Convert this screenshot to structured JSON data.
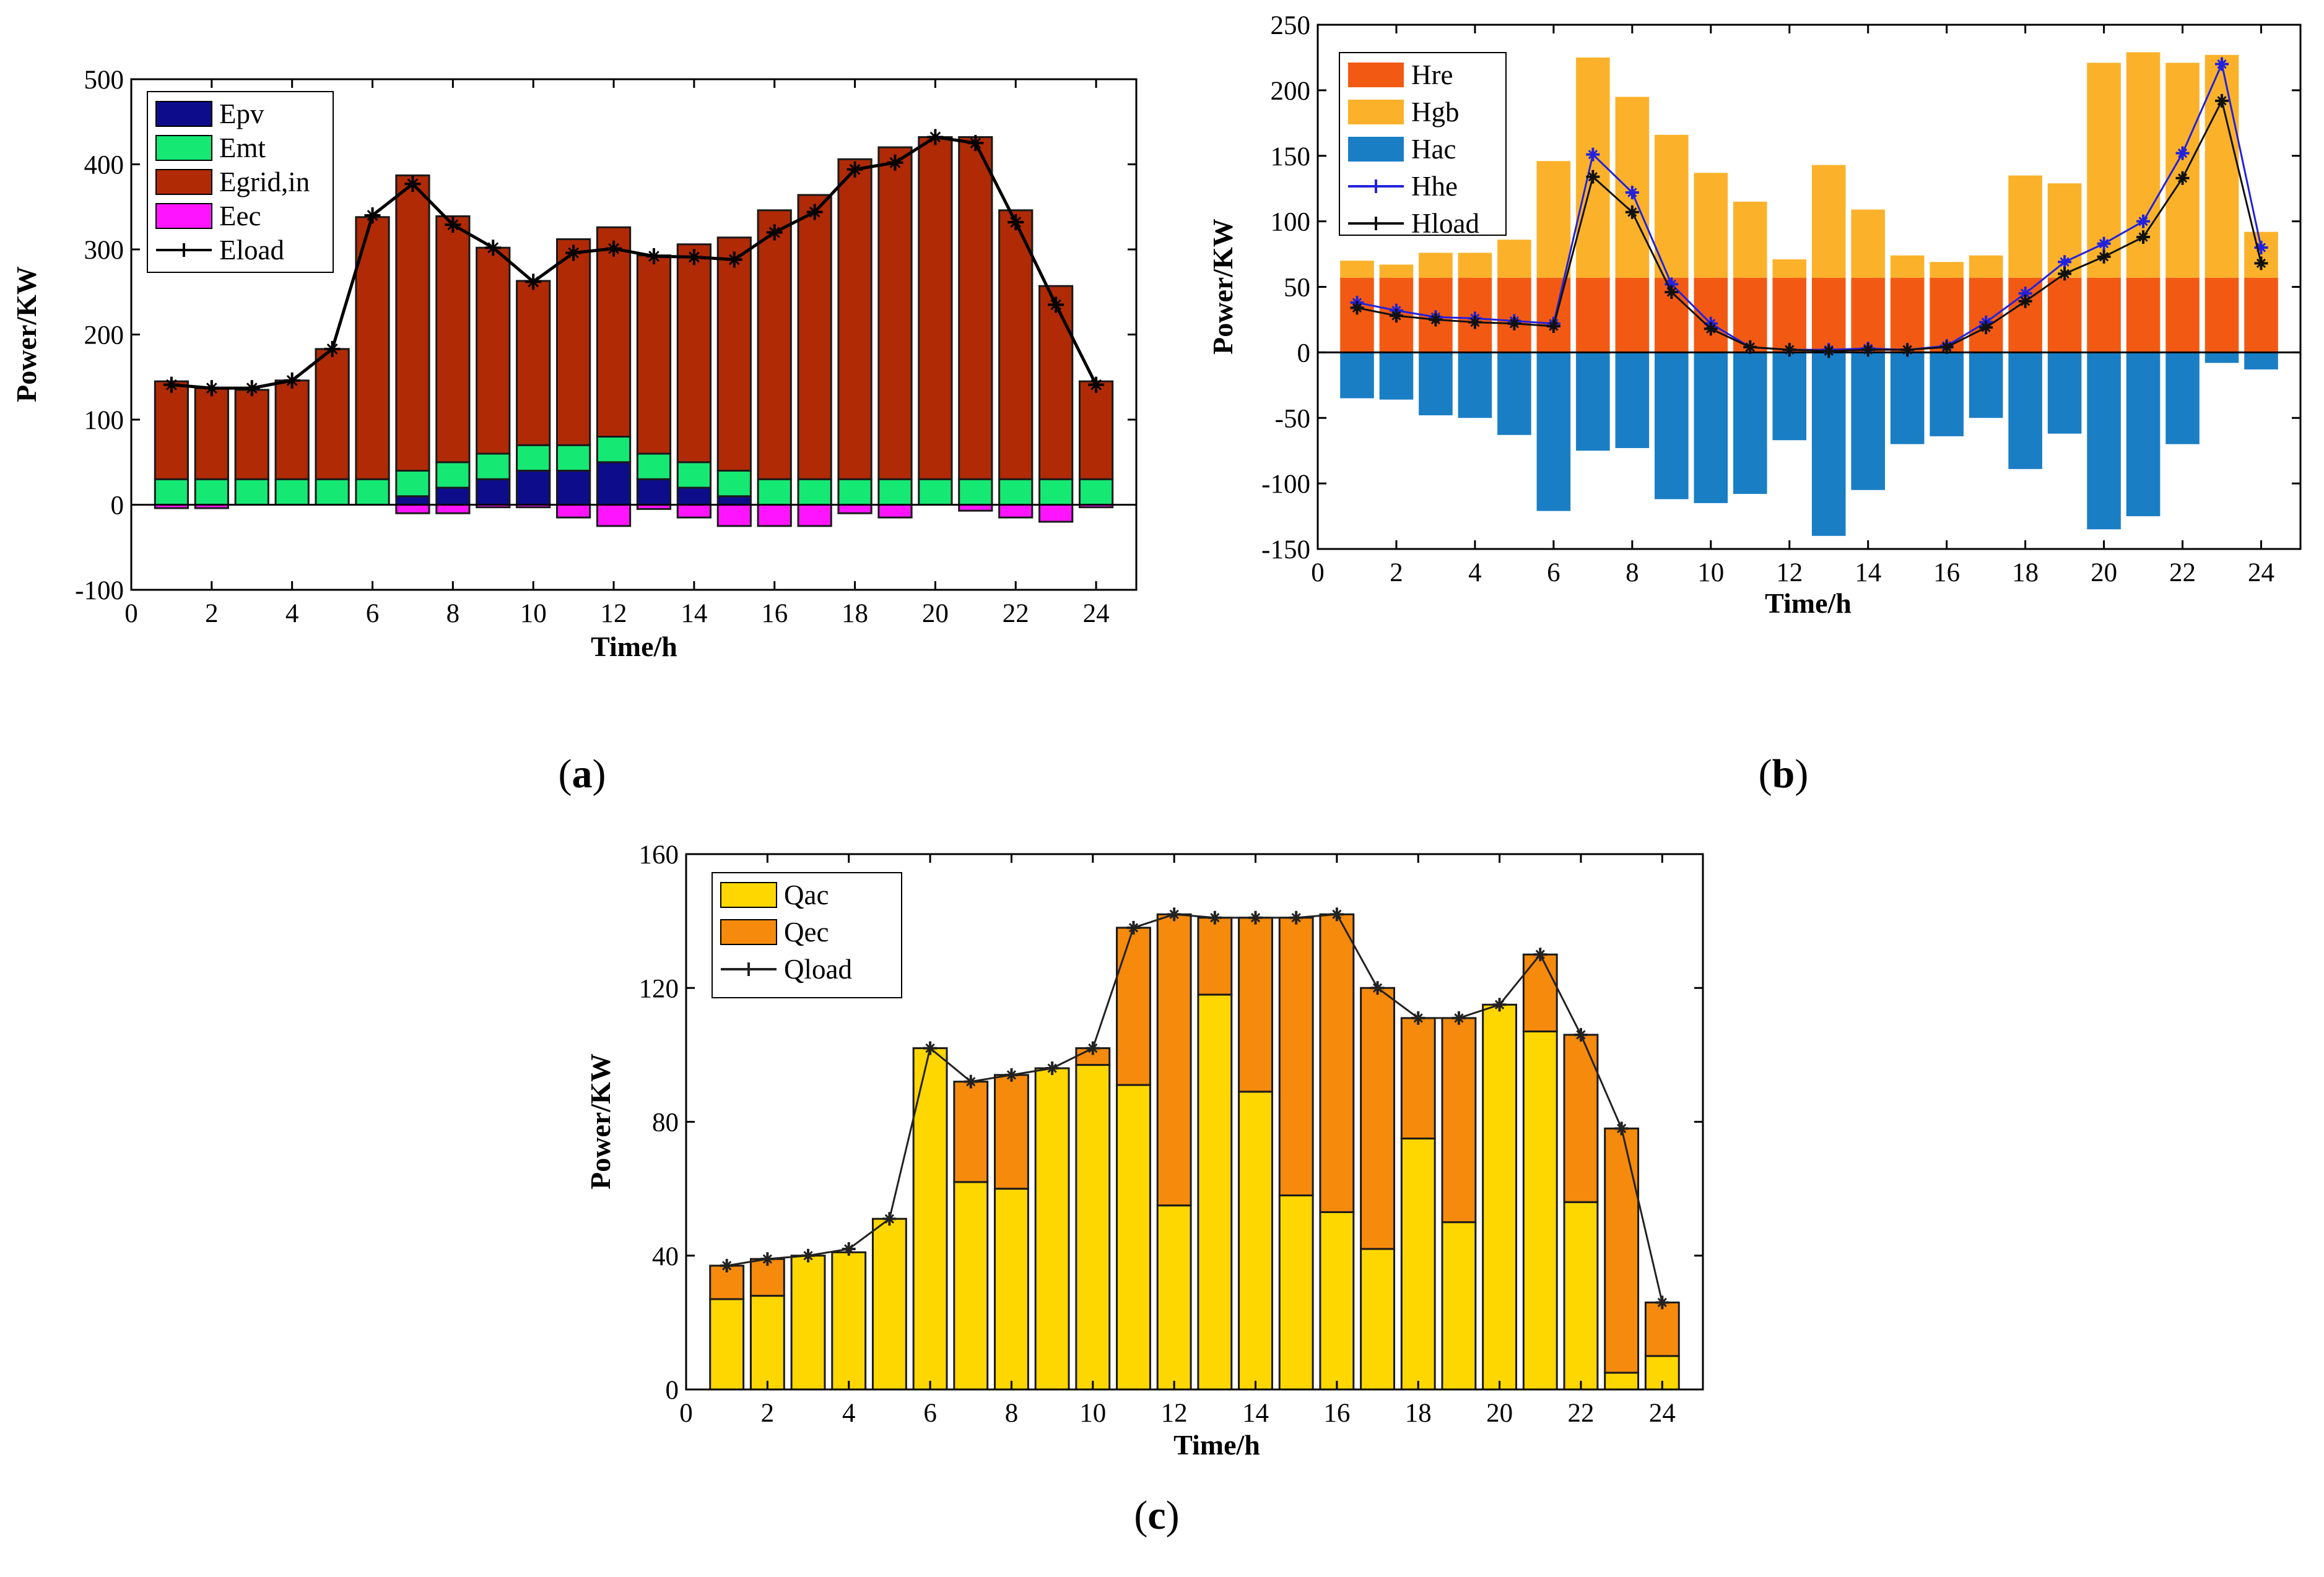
{
  "chart_data": [
    {
      "id": "a",
      "type": "bar",
      "stacked": true,
      "caption": "a",
      "xlabel": "Time/h",
      "ylabel": "Power/KW",
      "xlim": [
        0,
        25
      ],
      "ylim": [
        -100,
        500
      ],
      "xticks": [
        0,
        2,
        4,
        6,
        8,
        10,
        12,
        14,
        16,
        18,
        20,
        22,
        24
      ],
      "yticks": [
        -100,
        0,
        100,
        200,
        300,
        400,
        500
      ],
      "x": [
        1,
        2,
        3,
        4,
        5,
        6,
        7,
        8,
        9,
        10,
        11,
        12,
        13,
        14,
        15,
        16,
        17,
        18,
        19,
        20,
        21,
        22,
        23,
        24
      ],
      "legend_position": "top-left",
      "series": [
        {
          "name": "Epv",
          "color": "#0d0d8c",
          "values": [
            0,
            0,
            0,
            0,
            0,
            0,
            10,
            20,
            30,
            40,
            40,
            50,
            30,
            20,
            10,
            0,
            0,
            0,
            0,
            0,
            0,
            0,
            0,
            0
          ]
        },
        {
          "name": "Emt",
          "color": "#16e874",
          "values": [
            30,
            30,
            30,
            30,
            30,
            30,
            30,
            30,
            30,
            30,
            30,
            30,
            30,
            30,
            30,
            30,
            30,
            30,
            30,
            30,
            30,
            30,
            30,
            30
          ]
        },
        {
          "name": "Egrid,in",
          "color": "#b02a06",
          "values": [
            115,
            107,
            105,
            116,
            153,
            308,
            347,
            289,
            242,
            193,
            242,
            246,
            233,
            256,
            274,
            316,
            334,
            376,
            390,
            402,
            402,
            316,
            227,
            115
          ]
        },
        {
          "name": "Eec",
          "color": "#ff14ff",
          "values": [
            -4,
            -4,
            0,
            0,
            0,
            0,
            -10,
            -10,
            -3,
            -3,
            -15,
            -25,
            -5,
            -15,
            -25,
            -25,
            -25,
            -10,
            -15,
            0,
            -7,
            -15,
            -20,
            -3
          ]
        }
      ],
      "line": {
        "name": "Eload",
        "color": "#000000",
        "values": [
          141,
          137,
          137,
          146,
          183,
          340,
          377,
          329,
          302,
          262,
          296,
          301,
          292,
          291,
          288,
          320,
          344,
          394,
          402,
          432,
          425,
          332,
          235,
          141
        ]
      }
    },
    {
      "id": "b",
      "type": "bar",
      "stacked": true,
      "caption": "b",
      "xlabel": "Time/h",
      "ylabel": "Power/KW",
      "xlim": [
        0,
        25
      ],
      "ylim": [
        -150,
        250
      ],
      "xticks": [
        0,
        2,
        4,
        6,
        8,
        10,
        12,
        14,
        16,
        18,
        20,
        22,
        24
      ],
      "yticks": [
        -150,
        -100,
        -50,
        0,
        50,
        100,
        150,
        200,
        250
      ],
      "x": [
        1,
        2,
        3,
        4,
        5,
        6,
        7,
        8,
        9,
        10,
        11,
        12,
        13,
        14,
        15,
        16,
        17,
        18,
        19,
        20,
        21,
        22,
        23,
        24
      ],
      "legend_position": "top-left",
      "series": [
        {
          "name": "Hre",
          "color": "#f25a14",
          "values": [
            57,
            57,
            57,
            57,
            57,
            57,
            57,
            57,
            57,
            57,
            57,
            57,
            57,
            57,
            57,
            57,
            57,
            57,
            57,
            57,
            57,
            57,
            57,
            57
          ]
        },
        {
          "name": "Hgb",
          "color": "#fbb22a",
          "values": [
            13,
            10,
            19,
            19,
            29,
            89,
            168,
            138,
            109,
            80,
            58,
            14,
            86,
            52,
            17,
            12,
            17,
            78,
            72,
            164,
            172,
            164,
            170,
            35
          ]
        },
        {
          "name": "Hac",
          "color": "#1a7ec5",
          "values": [
            -35,
            -36,
            -48,
            -50,
            -63,
            -121,
            -75,
            -73,
            -112,
            -115,
            -108,
            -67,
            -140,
            -105,
            -70,
            -64,
            -50,
            -89,
            -62,
            -135,
            -125,
            -70,
            -8,
            -13
          ]
        }
      ],
      "lines": [
        {
          "name": "Hhe",
          "color": "#2222dd",
          "values": [
            38,
            32,
            27,
            26,
            24,
            22,
            151,
            122,
            52,
            22,
            4,
            2,
            2,
            3,
            2,
            5,
            23,
            45,
            69,
            83,
            100,
            152,
            220,
            80
          ]
        },
        {
          "name": "Hload",
          "color": "#111111",
          "values": [
            34,
            28,
            25,
            23,
            22,
            20,
            134,
            107,
            46,
            18,
            4,
            2,
            1,
            2,
            2,
            4,
            19,
            39,
            60,
            73,
            88,
            133,
            192,
            68
          ]
        }
      ]
    },
    {
      "id": "c",
      "type": "bar",
      "stacked": true,
      "caption": "c",
      "xlabel": "Time/h",
      "ylabel": "Power/KW",
      "xlim": [
        0,
        25
      ],
      "ylim": [
        0,
        160
      ],
      "xticks": [
        0,
        2,
        4,
        6,
        8,
        10,
        12,
        14,
        16,
        18,
        20,
        22,
        24
      ],
      "yticks": [
        0,
        40,
        80,
        120,
        160
      ],
      "x": [
        1,
        2,
        3,
        4,
        5,
        6,
        7,
        8,
        9,
        10,
        11,
        12,
        13,
        14,
        15,
        16,
        17,
        18,
        19,
        20,
        21,
        22,
        23,
        24
      ],
      "legend_position": "top-left",
      "series": [
        {
          "name": "Qac",
          "color": "#ffd700",
          "values": [
            27,
            28,
            40,
            41,
            51,
            102,
            62,
            60,
            96,
            97,
            91,
            55,
            118,
            89,
            58,
            53,
            42,
            75,
            50,
            115,
            107,
            56,
            5,
            10
          ]
        },
        {
          "name": "Qec",
          "color": "#f58a0c",
          "values": [
            10,
            11,
            0,
            0,
            0,
            0,
            30,
            34,
            0,
            5,
            47,
            87,
            23,
            52,
            83,
            89,
            78,
            36,
            61,
            0,
            23,
            50,
            73,
            16
          ]
        }
      ],
      "line": {
        "name": "Qload",
        "color": "#222222",
        "values": [
          37,
          39,
          40,
          42,
          51,
          102,
          92,
          94,
          96,
          102,
          138,
          142,
          141,
          141,
          141,
          142,
          120,
          111,
          111,
          115,
          130,
          106,
          78,
          26
        ]
      }
    }
  ]
}
